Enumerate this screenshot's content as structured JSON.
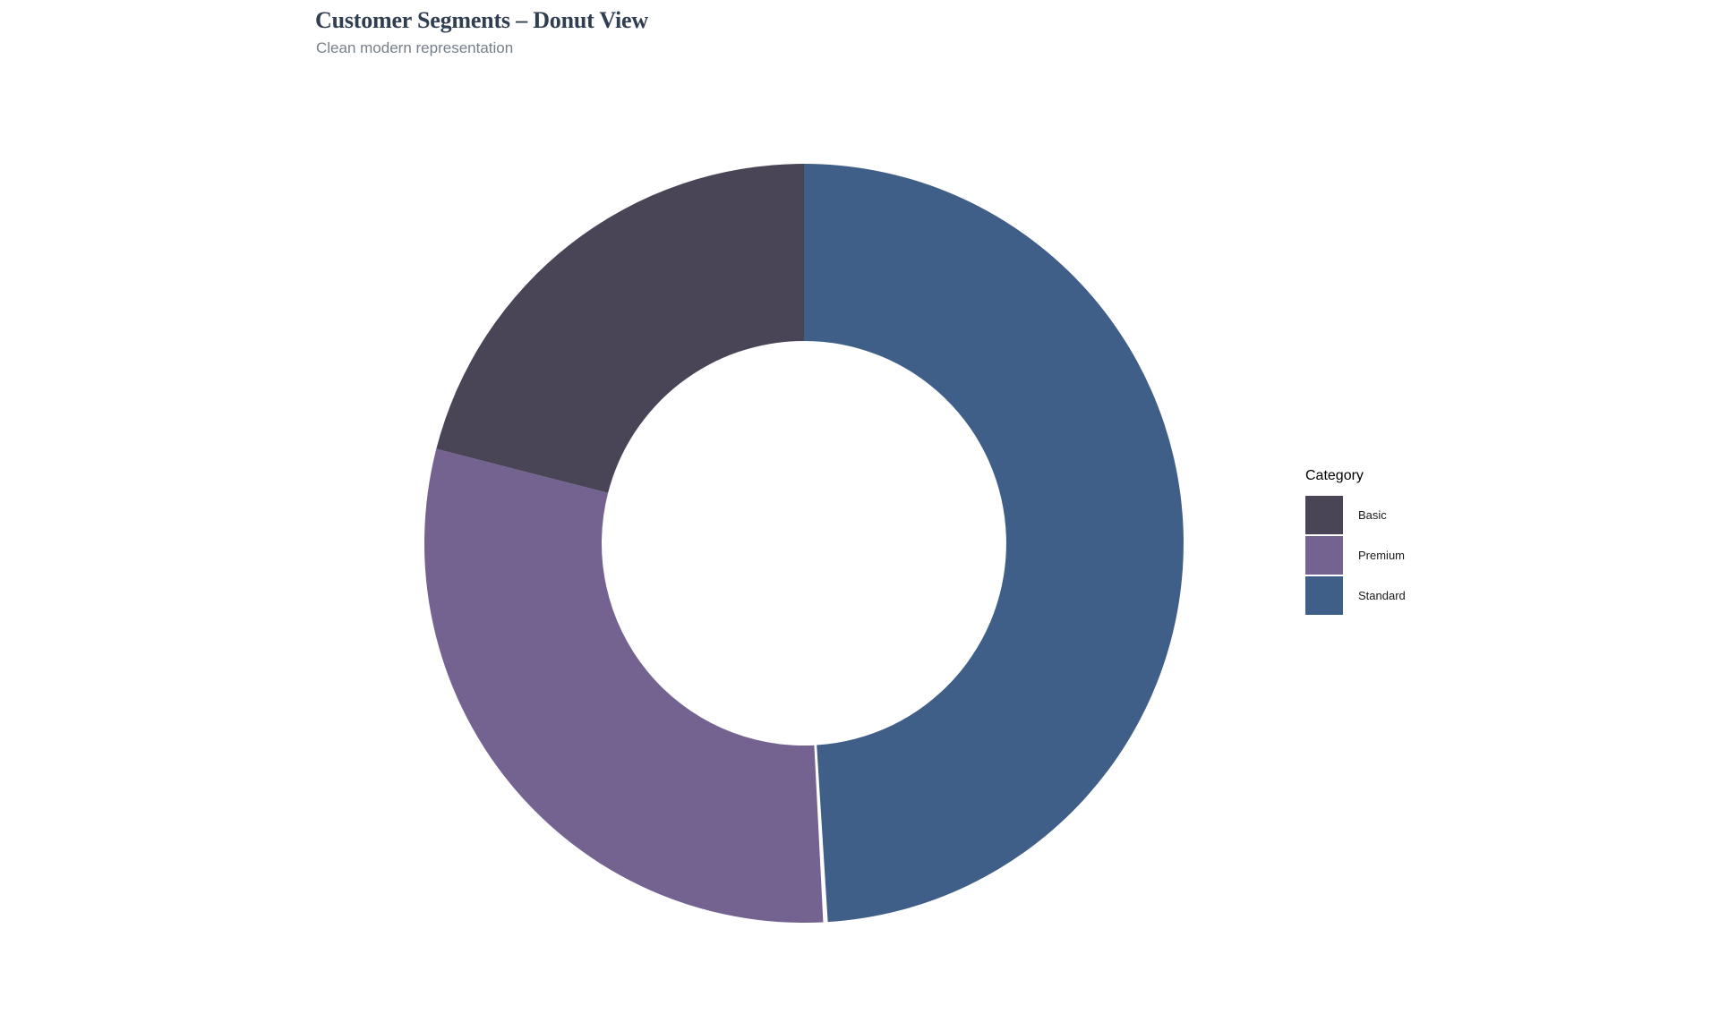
{
  "header": {
    "title": "Customer Segments – Donut View",
    "subtitle": "Clean modern representation",
    "title_color": "#2f3e50",
    "subtitle_color": "#76808a"
  },
  "legend": {
    "title": "Category",
    "position": "right",
    "items": [
      {
        "id": "basic",
        "label": "Basic",
        "color": "#494556"
      },
      {
        "id": "premium",
        "label": "Premium",
        "color": "#746390"
      },
      {
        "id": "standard",
        "label": "Standard",
        "color": "#405f88"
      }
    ]
  },
  "chart_data": {
    "type": "pie",
    "variant": "donut",
    "title": "Customer Segments – Donut View",
    "subtitle": "Clean modern representation",
    "legend_title": "Category",
    "legend_position": "right",
    "values_are": "percent_share",
    "categories": [
      "Standard",
      "Premium",
      "Basic"
    ],
    "values": [
      49,
      30,
      21
    ],
    "slices": [
      {
        "label": "Standard",
        "value": 49,
        "color": "#405f88",
        "gap_before_deg": 0
      },
      {
        "label": "Premium",
        "value": 30,
        "color": "#746390",
        "gap_before_deg": 0.7
      },
      {
        "label": "Basic",
        "value": 21,
        "color": "#494556",
        "gap_before_deg": 0
      }
    ],
    "start_angle_deg": 0,
    "direction": "clockwise",
    "inner_radius_ratio": 0.533,
    "data_labels": false,
    "background": "#ffffff"
  }
}
